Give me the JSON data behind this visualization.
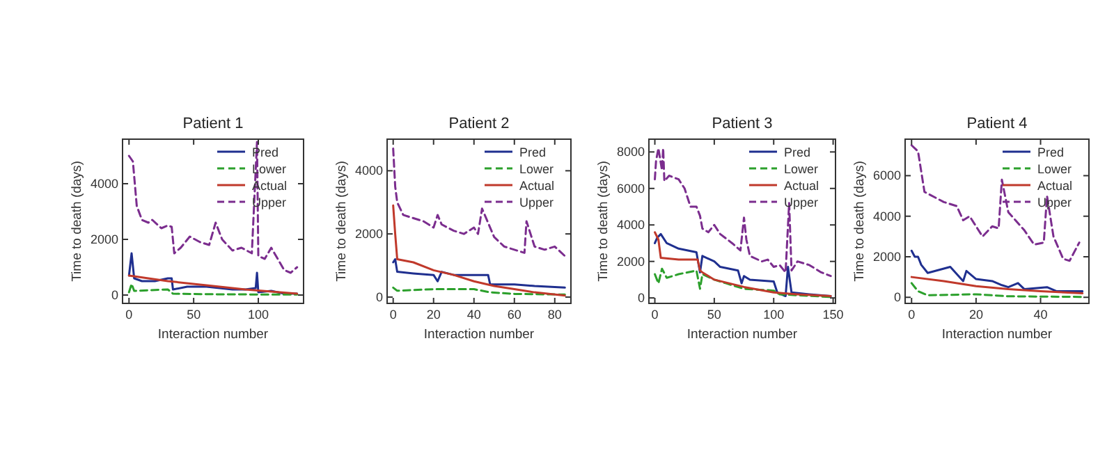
{
  "chart_data": [
    {
      "type": "line",
      "title": "Patient 1",
      "xlabel": "Interaction number",
      "ylabel": "Time to death (days)",
      "xlim": [
        -5,
        135
      ],
      "ylim": [
        -300,
        5600
      ],
      "xticks": [
        0,
        50,
        100
      ],
      "yticks": [
        0,
        2000,
        4000
      ],
      "grid": false,
      "legend": "top right",
      "series": [
        {
          "name": "Pred",
          "color": "#1f2f8f",
          "line_style": "solid",
          "x": [
            0,
            2,
            4,
            10,
            20,
            30,
            33,
            34,
            45,
            60,
            70,
            80,
            90,
            98,
            99,
            100,
            110,
            120,
            130
          ],
          "values": [
            700,
            1500,
            600,
            500,
            500,
            600,
            600,
            200,
            300,
            300,
            250,
            200,
            200,
            250,
            800,
            100,
            150,
            50,
            50
          ]
        },
        {
          "name": "Lower",
          "color": "#2ca02c",
          "line_style": "dashed",
          "x": [
            0,
            2,
            4,
            30,
            34,
            60,
            100,
            130
          ],
          "values": [
            100,
            400,
            150,
            200,
            50,
            30,
            20,
            20
          ]
        },
        {
          "name": "Actual",
          "color": "#c0392b",
          "line_style": "solid",
          "x": [
            0,
            30,
            60,
            90,
            130
          ],
          "values": [
            700,
            500,
            350,
            200,
            50
          ]
        },
        {
          "name": "Upper",
          "color": "#7b2d8e",
          "line_style": "dashed",
          "x": [
            0,
            3,
            6,
            10,
            15,
            18,
            25,
            30,
            33,
            35,
            40,
            47,
            55,
            62,
            67,
            72,
            80,
            87,
            95,
            99,
            100,
            105,
            110,
            120,
            125,
            130
          ],
          "values": [
            5000,
            4800,
            3200,
            2700,
            2600,
            2700,
            2400,
            2500,
            2450,
            1500,
            1700,
            2100,
            1900,
            1800,
            2600,
            2000,
            1600,
            1700,
            1500,
            5500,
            1400,
            1300,
            1700,
            900,
            800,
            1000
          ]
        }
      ]
    },
    {
      "type": "line",
      "title": "Patient 2",
      "xlabel": "Interaction number",
      "ylabel": "Time to death (days)",
      "xlim": [
        -3,
        88
      ],
      "ylim": [
        -200,
        5000
      ],
      "xticks": [
        0,
        20,
        40,
        60,
        80
      ],
      "yticks": [
        0,
        2000,
        4000
      ],
      "grid": false,
      "legend": "top right",
      "series": [
        {
          "name": "Pred",
          "color": "#1f2f8f",
          "line_style": "solid",
          "x": [
            0,
            1,
            2,
            10,
            20,
            22,
            24,
            30,
            40,
            47,
            48,
            60,
            70,
            85
          ],
          "values": [
            1100,
            1200,
            800,
            750,
            700,
            500,
            800,
            700,
            700,
            700,
            400,
            400,
            350,
            300
          ]
        },
        {
          "name": "Lower",
          "color": "#2ca02c",
          "line_style": "dashed",
          "x": [
            0,
            2,
            20,
            40,
            48,
            60,
            85
          ],
          "values": [
            300,
            200,
            250,
            250,
            150,
            100,
            80
          ]
        },
        {
          "name": "Actual",
          "color": "#c0392b",
          "line_style": "solid",
          "x": [
            0,
            1,
            2,
            10,
            20,
            30,
            40,
            50,
            60,
            70,
            85
          ],
          "values": [
            2900,
            2000,
            1200,
            1100,
            850,
            700,
            500,
            350,
            250,
            150,
            50
          ]
        },
        {
          "name": "Upper",
          "color": "#7b2d8e",
          "line_style": "dashed",
          "x": [
            0,
            1,
            2,
            5,
            15,
            20,
            22,
            24,
            30,
            35,
            40,
            42,
            44,
            46,
            50,
            55,
            60,
            65,
            66,
            70,
            75,
            80,
            85
          ],
          "values": [
            4700,
            3500,
            3000,
            2600,
            2400,
            2200,
            2600,
            2300,
            2100,
            2000,
            2200,
            2000,
            2800,
            2500,
            1900,
            1600,
            1500,
            1400,
            2400,
            1600,
            1500,
            1600,
            1300
          ]
        }
      ]
    },
    {
      "type": "line",
      "title": "Patient 3",
      "xlabel": "Interaction number",
      "ylabel": "Time to death (days)",
      "xlim": [
        -5,
        152
      ],
      "ylim": [
        -300,
        8700
      ],
      "xticks": [
        0,
        50,
        100,
        150
      ],
      "yticks": [
        0,
        2000,
        4000,
        6000,
        8000
      ],
      "grid": false,
      "legend": "top right",
      "series": [
        {
          "name": "Pred",
          "color": "#1f2f8f",
          "line_style": "solid",
          "x": [
            0,
            2,
            5,
            10,
            20,
            35,
            38,
            40,
            50,
            55,
            70,
            73,
            75,
            80,
            100,
            103,
            110,
            112,
            115,
            130,
            148
          ],
          "values": [
            3000,
            3300,
            3500,
            3000,
            2700,
            2500,
            1400,
            2300,
            2000,
            1700,
            1500,
            800,
            1200,
            1000,
            900,
            300,
            100,
            1700,
            300,
            200,
            100
          ]
        },
        {
          "name": "Lower",
          "color": "#2ca02c",
          "line_style": "dashed",
          "x": [
            0,
            3,
            6,
            10,
            20,
            35,
            38,
            40,
            50,
            60,
            75,
            100,
            105,
            148
          ],
          "values": [
            1300,
            800,
            1600,
            1100,
            1300,
            1500,
            500,
            1300,
            1000,
            800,
            500,
            400,
            200,
            50
          ]
        },
        {
          "name": "Actual",
          "color": "#c0392b",
          "line_style": "solid",
          "x": [
            0,
            3,
            5,
            20,
            36,
            38,
            40,
            50,
            75,
            100,
            120,
            148
          ],
          "values": [
            3600,
            3200,
            2200,
            2100,
            2100,
            1500,
            1400,
            1000,
            600,
            300,
            200,
            100
          ]
        },
        {
          "name": "Upper",
          "color": "#7b2d8e",
          "line_style": "dashed",
          "x": [
            0,
            1,
            3,
            6,
            7,
            8,
            12,
            20,
            25,
            30,
            35,
            38,
            40,
            45,
            50,
            55,
            65,
            72,
            75,
            77,
            80,
            90,
            95,
            100,
            105,
            110,
            113,
            115,
            120,
            130,
            140,
            148
          ],
          "values": [
            6500,
            7500,
            8200,
            7000,
            8200,
            6400,
            6700,
            6500,
            6000,
            5000,
            5000,
            4500,
            3800,
            3600,
            4000,
            3500,
            3000,
            2600,
            4400,
            3200,
            2300,
            2000,
            2100,
            1700,
            1800,
            1400,
            5200,
            1500,
            2000,
            1800,
            1400,
            1200
          ]
        }
      ]
    },
    {
      "type": "line",
      "title": "Patient 4",
      "xlabel": "Interaction number",
      "ylabel": "Time to death (days)",
      "xlim": [
        -2,
        55
      ],
      "ylim": [
        -300,
        7800
      ],
      "xticks": [
        0,
        20,
        40
      ],
      "yticks": [
        0,
        2000,
        4000,
        6000
      ],
      "grid": false,
      "legend": "top right",
      "series": [
        {
          "name": "Pred",
          "color": "#1f2f8f",
          "line_style": "solid",
          "x": [
            0,
            1,
            2,
            3,
            5,
            12,
            16,
            17,
            20,
            25,
            28,
            30,
            33,
            35,
            42,
            45,
            53
          ],
          "values": [
            2300,
            2000,
            2000,
            1600,
            1200,
            1500,
            800,
            1300,
            900,
            800,
            600,
            500,
            700,
            400,
            500,
            300,
            300
          ]
        },
        {
          "name": "Lower",
          "color": "#2ca02c",
          "line_style": "dashed",
          "x": [
            0,
            2,
            5,
            20,
            30,
            53
          ],
          "values": [
            700,
            300,
            100,
            150,
            50,
            20
          ]
        },
        {
          "name": "Actual",
          "color": "#c0392b",
          "line_style": "solid",
          "x": [
            0,
            10,
            20,
            30,
            40,
            53
          ],
          "values": [
            1000,
            800,
            550,
            400,
            300,
            200
          ]
        },
        {
          "name": "Upper",
          "color": "#7b2d8e",
          "line_style": "dashed",
          "x": [
            0,
            2,
            4,
            10,
            14,
            16,
            18,
            20,
            22,
            25,
            27,
            28,
            30,
            35,
            38,
            41,
            42,
            44,
            47,
            49,
            52
          ],
          "values": [
            7500,
            7200,
            5200,
            4700,
            4500,
            3800,
            4000,
            3500,
            3000,
            3500,
            3400,
            5800,
            4200,
            3300,
            2600,
            2700,
            5000,
            3000,
            1900,
            1800,
            2700
          ]
        }
      ]
    }
  ]
}
